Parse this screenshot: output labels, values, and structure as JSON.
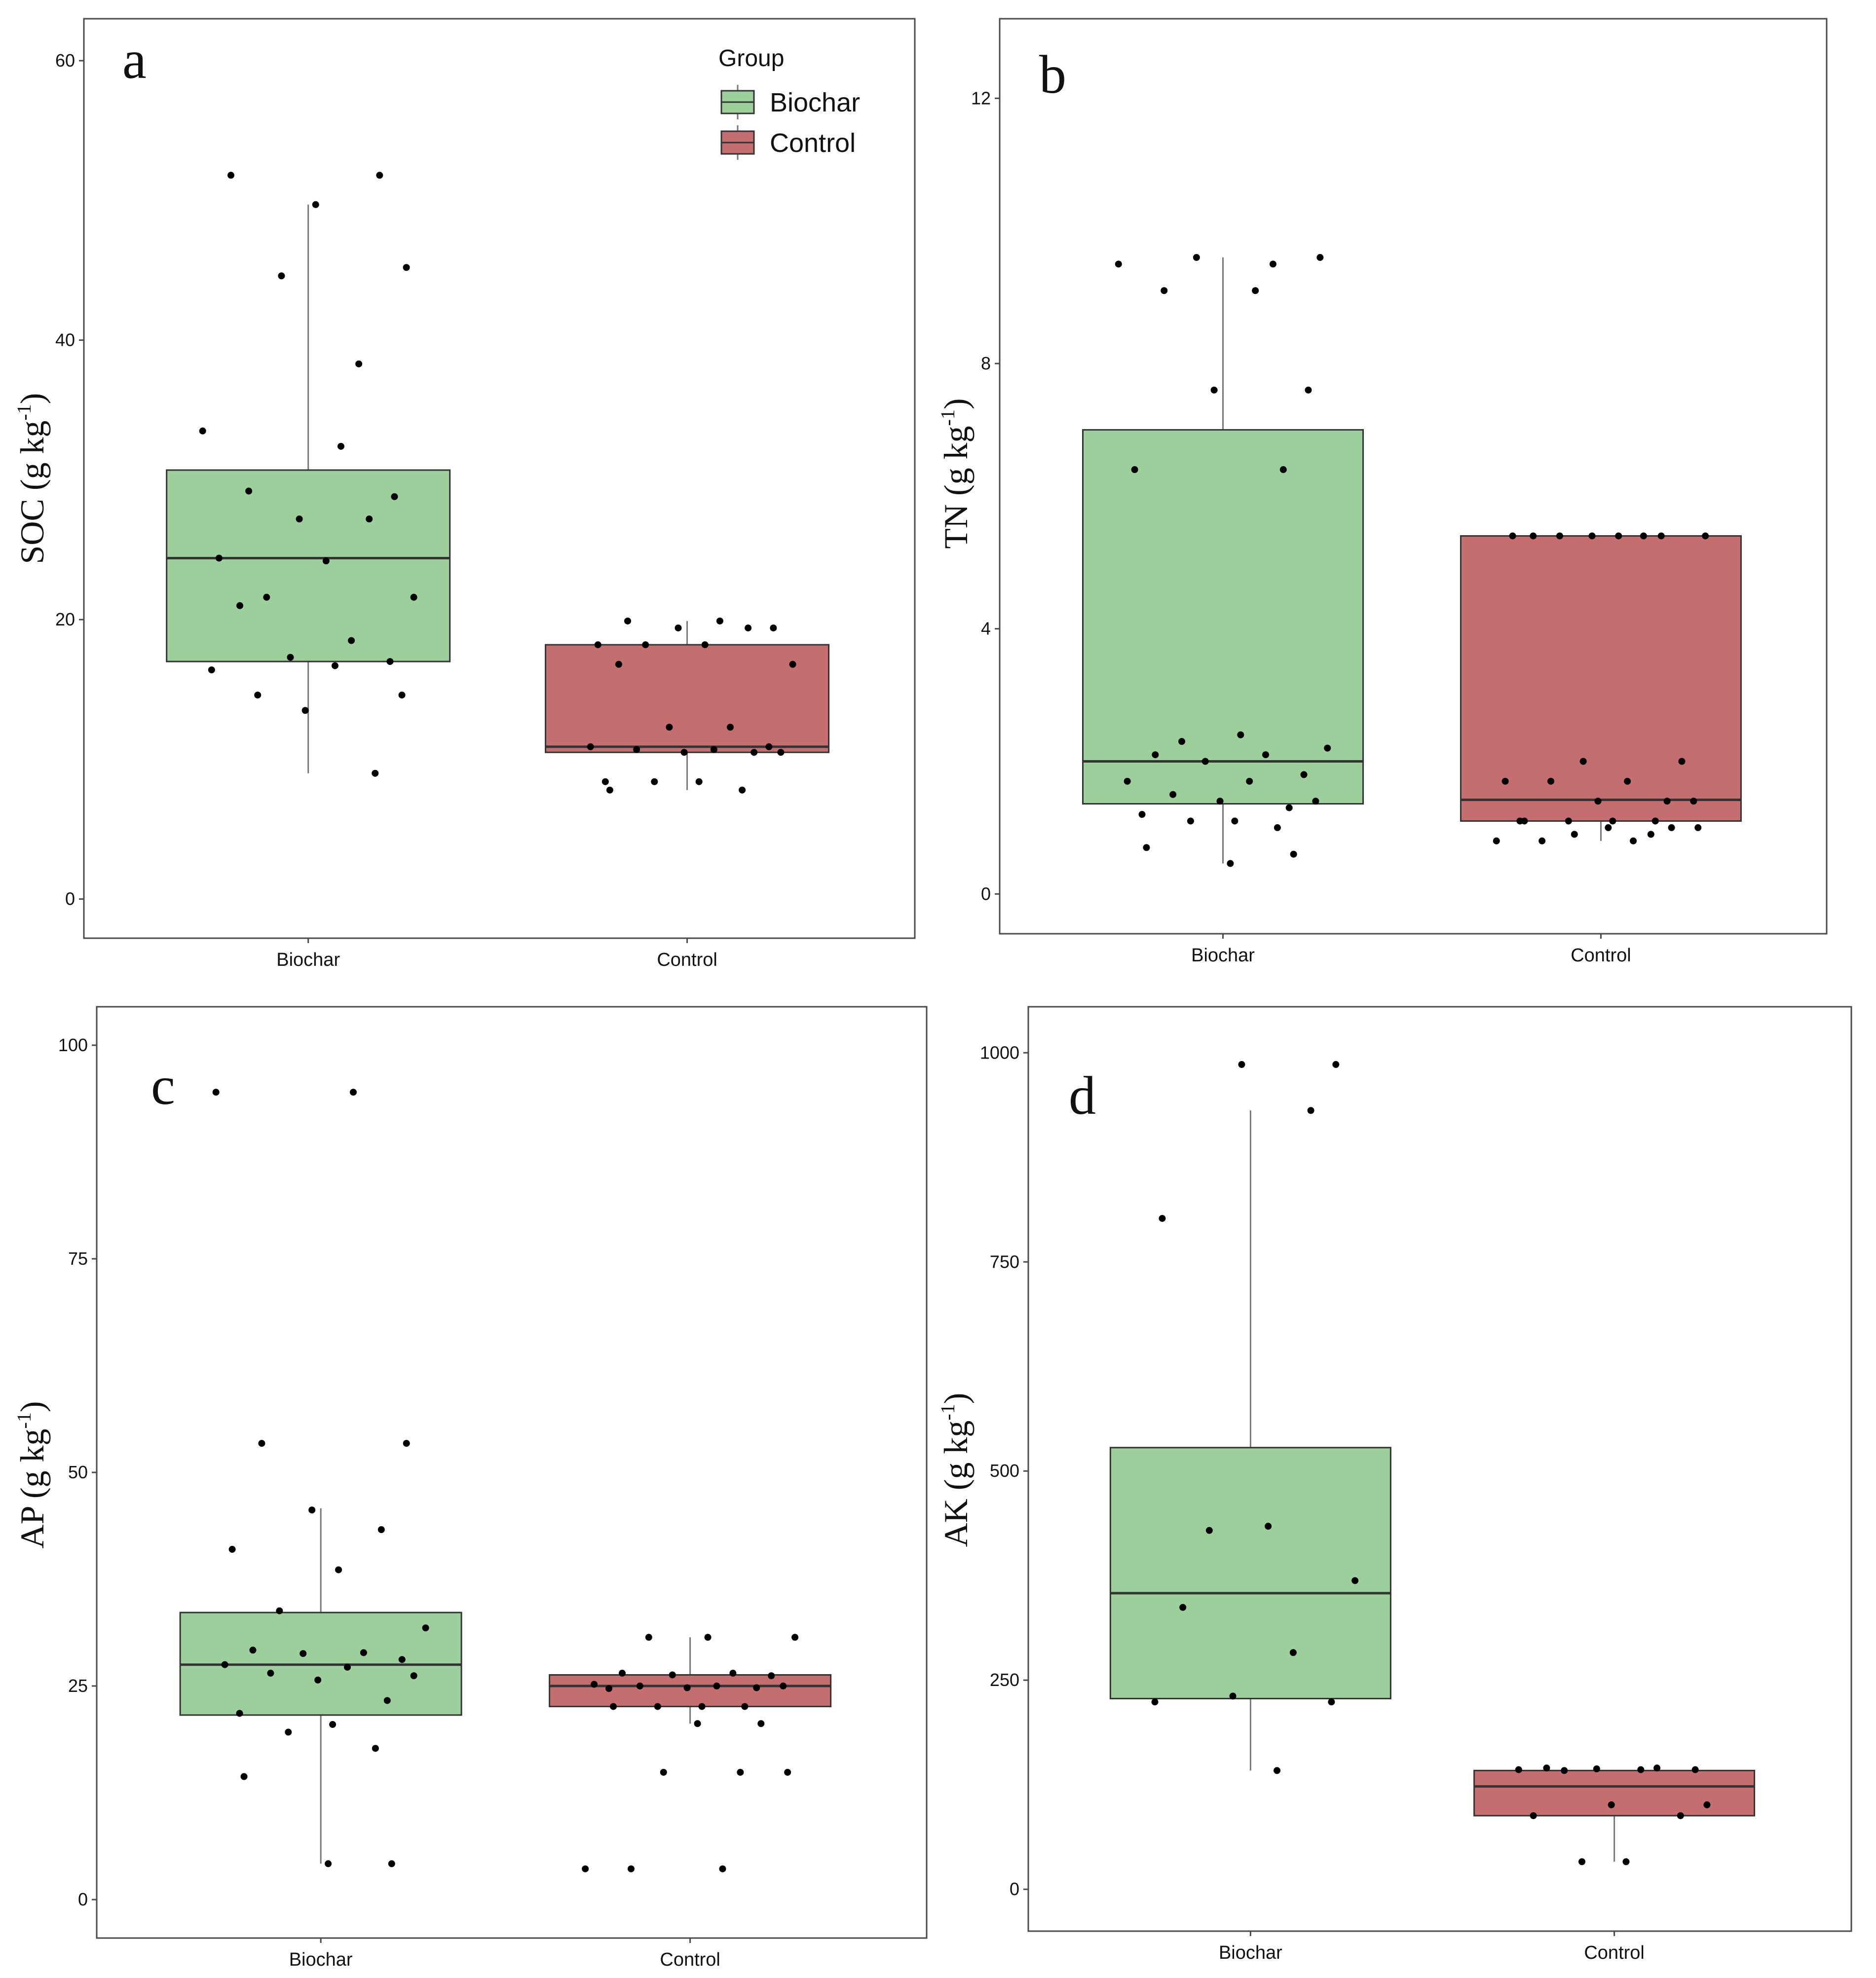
{
  "colors": {
    "biochar": "#9ccf9b",
    "control": "#c56e6f",
    "line": "#333333",
    "whisker": "#777777",
    "point": "#000000"
  },
  "legend": {
    "title": "Group",
    "items": [
      "Biochar",
      "Control"
    ]
  },
  "chart_data": [
    {
      "type": "box",
      "panel": "a",
      "ylabel": "SOC (g kg",
      "ylabel_sup": "-1",
      "ylabel_close": ")",
      "categories": [
        "Biochar",
        "Control"
      ],
      "ylim": [
        -2.8,
        63
      ],
      "yticks": [
        0,
        20,
        40,
        60
      ],
      "boxes": [
        {
          "group": "Biochar",
          "q1": 17.0,
          "median": 24.4,
          "q3": 30.7,
          "whisker_low": 9.0,
          "whisker_high": 49.7,
          "points": [
            51.8,
            51.8,
            49.7,
            45.2,
            44.6,
            38.3,
            33.5,
            32.4,
            29.2,
            28.8,
            27.2,
            27.2,
            24.4,
            24.2,
            21.6,
            21.6,
            21.0,
            18.5,
            17.3,
            17.0,
            16.4,
            16.7,
            14.6,
            14.6,
            13.5,
            9.0
          ]
        },
        {
          "group": "Control",
          "q1": 10.5,
          "median": 10.9,
          "q3": 18.2,
          "whisker_low": 7.8,
          "whisker_high": 19.9,
          "points": [
            19.9,
            19.9,
            19.4,
            19.4,
            19.4,
            18.2,
            18.2,
            18.2,
            16.8,
            16.8,
            12.3,
            12.3,
            10.9,
            10.9,
            10.7,
            10.7,
            10.5,
            10.5,
            10.5,
            8.4,
            8.4,
            8.4,
            7.8,
            7.8
          ]
        }
      ]
    },
    {
      "type": "box",
      "panel": "b",
      "ylabel": "TN (g kg",
      "ylabel_sup": "-1",
      "ylabel_close": ")",
      "categories": [
        "Biochar",
        "Control"
      ],
      "ylim": [
        -0.6,
        13.2
      ],
      "yticks": [
        0,
        4,
        8,
        12
      ],
      "boxes": [
        {
          "group": "Biochar",
          "q1": 1.36,
          "median": 2.0,
          "q3": 7.0,
          "whisker_low": 0.46,
          "whisker_high": 9.6,
          "points": [
            9.6,
            9.6,
            9.5,
            9.5,
            9.1,
            9.1,
            7.6,
            7.6,
            6.4,
            6.4,
            2.4,
            2.3,
            2.2,
            2.1,
            2.1,
            2.0,
            1.8,
            1.7,
            1.7,
            1.5,
            1.4,
            1.4,
            1.3,
            1.2,
            1.1,
            1.1,
            1.0,
            0.7,
            0.6,
            0.46
          ]
        },
        {
          "group": "Control",
          "q1": 1.1,
          "median": 1.42,
          "q3": 5.4,
          "whisker_low": 0.8,
          "whisker_high": 5.4,
          "points": [
            5.4,
            5.4,
            5.4,
            5.4,
            5.4,
            5.4,
            5.4,
            5.4,
            2.0,
            2.0,
            1.7,
            1.7,
            1.7,
            1.4,
            1.4,
            1.4,
            1.1,
            1.1,
            1.1,
            1.1,
            1.1,
            1.0,
            1.0,
            1.0,
            0.9,
            0.9,
            0.8,
            0.8,
            0.8
          ]
        }
      ]
    },
    {
      "type": "box",
      "panel": "c",
      "ylabel": "AP (g kg",
      "ylabel_sup": "-1",
      "ylabel_close": ")",
      "categories": [
        "Biochar",
        "Control"
      ],
      "ylim": [
        -4.5,
        104.5
      ],
      "yticks": [
        0,
        25,
        50,
        75,
        100
      ],
      "boxes": [
        {
          "group": "Biochar",
          "q1": 21.6,
          "median": 27.5,
          "q3": 33.6,
          "whisker_low": 4.2,
          "whisker_high": 45.8,
          "points": [
            94.5,
            94.5,
            53.4,
            53.4,
            45.6,
            43.3,
            41.0,
            38.6,
            33.8,
            31.8,
            29.2,
            28.9,
            28.8,
            28.1,
            27.5,
            27.2,
            26.5,
            26.2,
            25.7,
            23.3,
            21.8,
            20.5,
            19.6,
            17.7,
            14.4,
            4.2,
            4.2
          ]
        },
        {
          "group": "Control",
          "q1": 22.6,
          "median": 25.0,
          "q3": 26.3,
          "whisker_low": 20.6,
          "whisker_high": 30.7,
          "points": [
            30.7,
            30.7,
            30.7,
            26.5,
            26.5,
            26.3,
            26.2,
            25.2,
            25.0,
            25.0,
            25.0,
            24.8,
            24.8,
            24.7,
            22.6,
            22.6,
            22.6,
            22.6,
            20.6,
            20.6,
            14.9,
            14.9,
            14.9,
            3.6,
            3.6,
            3.6
          ]
        }
      ]
    },
    {
      "type": "box",
      "panel": "d",
      "ylabel": "AK (g kg",
      "ylabel_sup": "-1",
      "ylabel_close": ")",
      "categories": [
        "Biochar",
        "Control"
      ],
      "ylim": [
        -50,
        1055
      ],
      "yticks": [
        0,
        250,
        500,
        750,
        1000
      ],
      "boxes": [
        {
          "group": "Biochar",
          "q1": 228,
          "median": 354,
          "q3": 528,
          "whisker_low": 142,
          "whisker_high": 931,
          "points": [
            986,
            986,
            931,
            802,
            434,
            429,
            369,
            337,
            283,
            231,
            224,
            224,
            142
          ]
        },
        {
          "group": "Control",
          "q1": 88,
          "median": 123,
          "q3": 142,
          "whisker_low": 33,
          "whisker_high": 142,
          "points": [
            145,
            145,
            144,
            143,
            143,
            143,
            142,
            101,
            101,
            88,
            88,
            33,
            33
          ]
        }
      ]
    }
  ]
}
